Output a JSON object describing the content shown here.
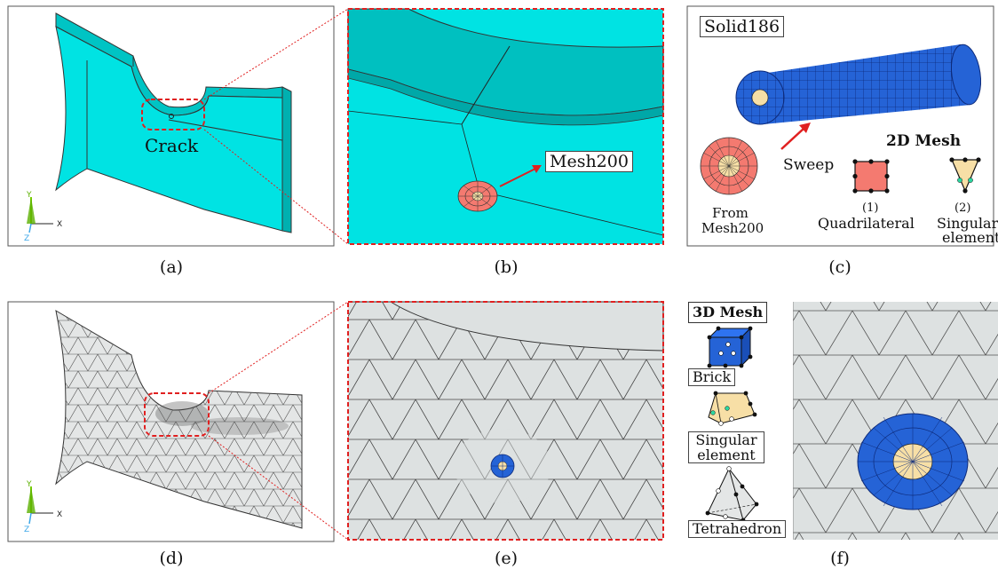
{
  "panels": {
    "a": {
      "caption": "(a)",
      "crack_label": "Crack",
      "axes": {
        "y": "Y",
        "x": "X",
        "z": "Z"
      }
    },
    "b": {
      "caption": "(b)",
      "mesh_label": "Mesh200"
    },
    "c": {
      "caption": "(c)",
      "solid_label": "Solid186",
      "sweep_label": "Sweep",
      "from_label_1": "From",
      "from_label_2": "Mesh200",
      "mesh2d_title": "2D Mesh",
      "elem1_num": "(1)",
      "elem1_name": "Quadrilateral",
      "elem2_num": "(2)",
      "elem2_name_1": "Singular",
      "elem2_name_2": "element"
    },
    "d": {
      "caption": "(d)",
      "axes": {
        "y": "Y",
        "x": "X",
        "z": "Z"
      }
    },
    "e": {
      "caption": "(e)"
    },
    "f": {
      "caption": "(f)",
      "mesh3d_title": "3D Mesh",
      "brick_label": "Brick",
      "singular_label_1": "Singular",
      "singular_label_2": "element",
      "tetra_label": "Tetrahedron"
    }
  },
  "colors": {
    "cyan_solid": "#00e3e3",
    "cyan_dark": "#00b8b8",
    "grey_mesh": "#dde1e1",
    "red_dashed": "#e02020",
    "salmon": "#f47a70",
    "blue_mesh": "#2563d6",
    "cream": "#f7dfa6"
  }
}
